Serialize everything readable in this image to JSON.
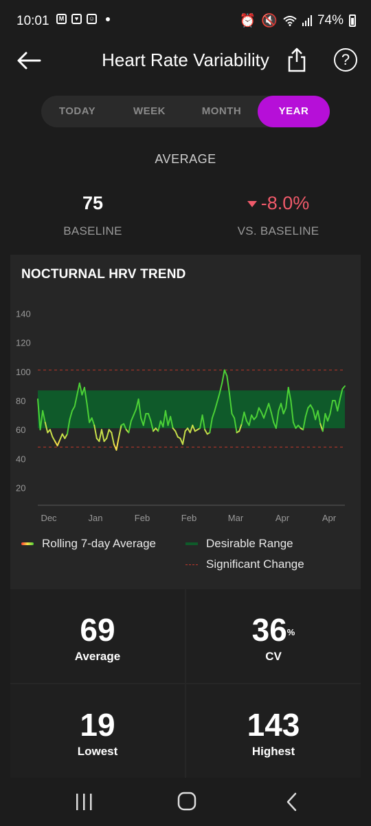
{
  "status": {
    "time": "10:01",
    "battery": "74%",
    "left_icons": [
      "mail-icon",
      "shield-icon",
      "app-icon",
      "dot-icon"
    ],
    "right_icons": [
      "alarm-icon",
      "mute-icon",
      "wifi-icon",
      "signal-icon",
      "battery-icon"
    ]
  },
  "header": {
    "title": "Heart Rate Variability"
  },
  "tabs": [
    {
      "label": "TODAY",
      "active": false
    },
    {
      "label": "WEEK",
      "active": false
    },
    {
      "label": "MONTH",
      "active": false
    },
    {
      "label": "YEAR",
      "active": true
    }
  ],
  "summary": {
    "label": "AVERAGE",
    "baseline_value": "75",
    "baseline_caption": "BASELINE",
    "change_value": "-8.0%",
    "change_caption": "VS. BASELINE"
  },
  "card": {
    "title": "NOCTURNAL HRV TREND"
  },
  "chart_data": {
    "type": "line",
    "title": "NOCTURNAL HRV TREND",
    "x_tick_labels": [
      "Dec",
      "Jan",
      "Feb",
      "Feb",
      "Mar",
      "Apr",
      "Apr"
    ],
    "y_ticks": [
      20,
      40,
      60,
      80,
      100,
      120,
      140
    ],
    "ylim": [
      8,
      152
    ],
    "desirable_range": [
      61,
      87
    ],
    "significant_change_lines": [
      48,
      101
    ],
    "series": [
      {
        "name": "Rolling 7-day Average",
        "values": [
          81,
          60,
          73,
          65,
          58,
          60,
          55,
          52,
          49,
          53,
          57,
          54,
          57,
          67,
          73,
          76,
          84,
          92,
          84,
          89,
          78,
          65,
          68,
          63,
          54,
          52,
          60,
          52,
          54,
          60,
          58,
          50,
          46,
          55,
          63,
          64,
          60,
          58,
          66,
          70,
          74,
          81,
          68,
          63,
          71,
          71,
          66,
          59,
          61,
          59,
          66,
          62,
          73,
          63,
          69,
          61,
          59,
          55,
          54,
          50,
          59,
          61,
          58,
          63,
          59,
          60,
          61,
          70,
          60,
          57,
          58,
          68,
          73,
          79,
          85,
          92,
          101,
          97,
          85,
          71,
          68,
          58,
          59,
          64,
          72,
          66,
          63,
          70,
          67,
          69,
          75,
          72,
          68,
          73,
          78,
          72,
          65,
          61,
          73,
          78,
          71,
          75,
          89,
          80,
          65,
          61,
          63,
          61,
          60,
          69,
          75,
          77,
          74,
          67,
          73,
          64,
          59,
          71,
          66,
          71,
          80,
          80,
          73,
          81,
          88,
          90
        ]
      }
    ],
    "legend": [
      "Rolling 7-day Average",
      "Desirable Range",
      "Significant Change"
    ],
    "legend_placement": "bottom",
    "grid": false,
    "colors": {
      "range": "#0f5a2a",
      "significant": "#c0392b",
      "line_high": "#4cd137",
      "line_mid": "#f5e04a",
      "line_low": "#ff3b30"
    }
  },
  "legend": {
    "rolling": "Rolling 7-day Average",
    "desirable": "Desirable Range",
    "significant": "Significant Change"
  },
  "stats": {
    "average": {
      "value": "69",
      "label": "Average"
    },
    "cv": {
      "value": "36",
      "unit": "%",
      "label": "CV"
    },
    "lowest": {
      "value": "19",
      "label": "Lowest"
    },
    "highest": {
      "value": "143",
      "label": "Highest"
    }
  },
  "colors": {
    "accent": "#b60fd8",
    "negative": "#f05a6a",
    "background": "#1c1c1c",
    "card": "#262626"
  }
}
